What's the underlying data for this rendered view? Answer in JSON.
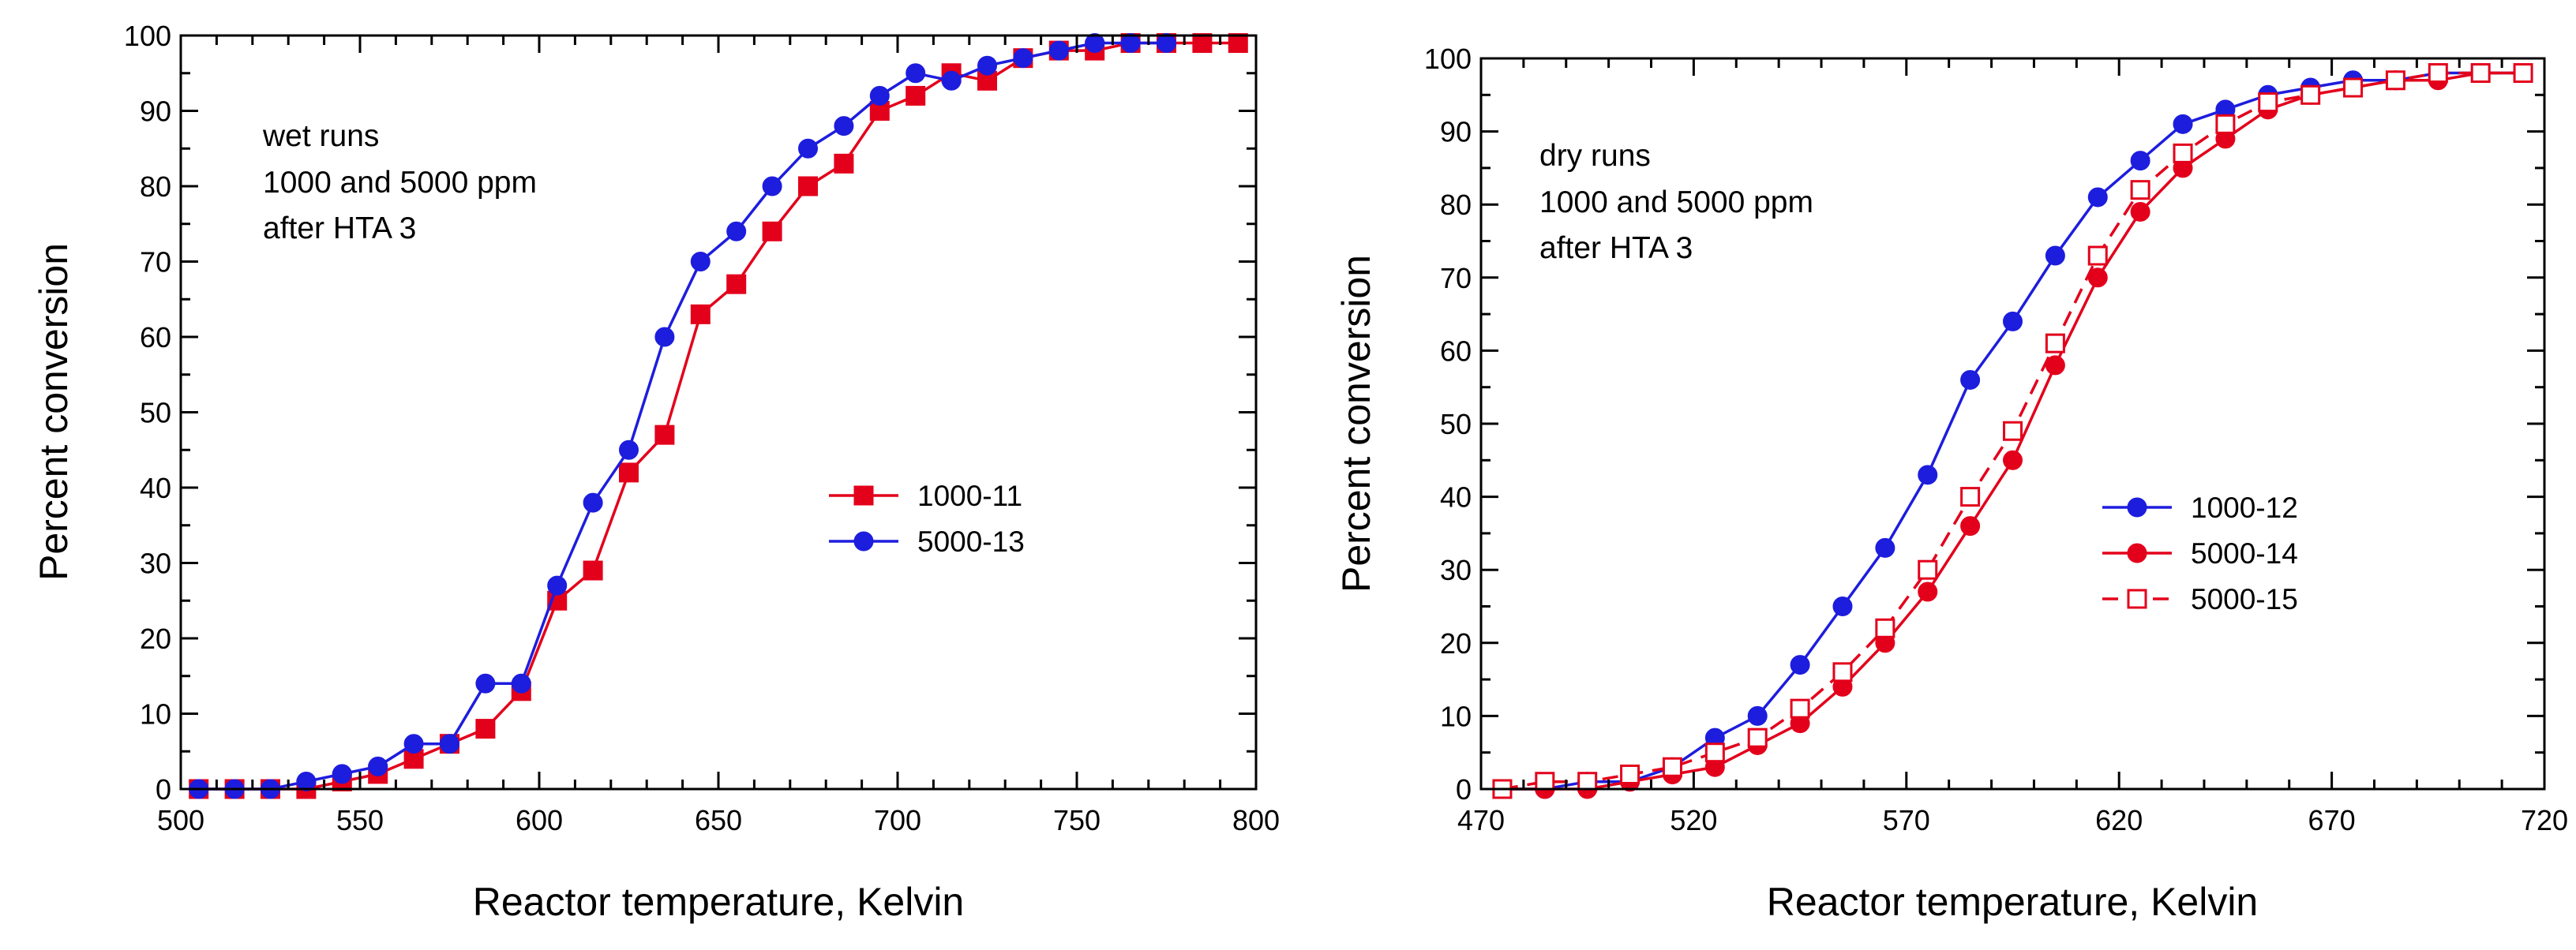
{
  "chart_data": [
    {
      "id": "left",
      "type": "line",
      "title": "",
      "xlabel": "Reactor temperature, Kelvin",
      "ylabel": "Percent conversion",
      "xlim": [
        500,
        800
      ],
      "ylim": [
        0,
        100
      ],
      "xticks": [
        500,
        550,
        600,
        650,
        700,
        750,
        800
      ],
      "yticks": [
        0,
        10,
        20,
        30,
        40,
        50,
        60,
        70,
        80,
        90,
        100
      ],
      "grid": false,
      "legend_position": "middle-right",
      "annotations": [
        "wet runs",
        "1000 and 5000 ppm",
        "after HTA 3"
      ],
      "series": [
        {
          "name": "1000-11",
          "color": "#e3001b",
          "marker": "square",
          "marker_fill": "filled",
          "line_style": "solid",
          "x": [
            505,
            515,
            525,
            535,
            545,
            555,
            565,
            575,
            585,
            595,
            605,
            615,
            625,
            635,
            645,
            655,
            665,
            675,
            685,
            695,
            705,
            715,
            725,
            735,
            745,
            755,
            765,
            775,
            785,
            795
          ],
          "y": [
            0,
            0,
            0,
            0,
            1,
            2,
            4,
            6,
            8,
            13,
            25,
            29,
            42,
            47,
            63,
            67,
            74,
            80,
            83,
            90,
            92,
            95,
            94,
            97,
            98,
            98,
            99,
            99,
            99,
            99
          ]
        },
        {
          "name": "5000-13",
          "color": "#1d1dde",
          "marker": "circle",
          "marker_fill": "filled",
          "line_style": "solid",
          "x": [
            505,
            515,
            525,
            535,
            545,
            555,
            565,
            575,
            585,
            595,
            605,
            615,
            625,
            635,
            645,
            655,
            665,
            675,
            685,
            695,
            705,
            715,
            725,
            735,
            745,
            755,
            765,
            775
          ],
          "y": [
            0,
            0,
            0,
            1,
            2,
            3,
            6,
            6,
            14,
            14,
            27,
            38,
            45,
            60,
            70,
            74,
            80,
            85,
            88,
            92,
            95,
            94,
            96,
            97,
            98,
            99,
            99,
            99
          ]
        }
      ]
    },
    {
      "id": "right",
      "type": "line",
      "title": "",
      "xlabel": "Reactor temperature, Kelvin",
      "ylabel": "Percent conversion",
      "xlim": [
        470,
        720
      ],
      "ylim": [
        0,
        100
      ],
      "xticks": [
        470,
        520,
        570,
        620,
        670,
        720
      ],
      "yticks": [
        0,
        10,
        20,
        30,
        40,
        50,
        60,
        70,
        80,
        90,
        100
      ],
      "grid": false,
      "legend_position": "middle-right",
      "annotations": [
        "dry runs",
        "1000 and 5000 ppm",
        "after HTA 3"
      ],
      "series": [
        {
          "name": "1000-12",
          "color": "#1d1dde",
          "marker": "circle",
          "marker_fill": "filled",
          "line_style": "solid",
          "x": [
            475,
            485,
            495,
            505,
            515,
            525,
            535,
            545,
            555,
            565,
            575,
            585,
            595,
            605,
            615,
            625,
            635,
            645,
            655,
            665,
            675,
            685,
            695,
            705,
            715
          ],
          "y": [
            0,
            0,
            1,
            1,
            3,
            7,
            10,
            17,
            25,
            33,
            43,
            56,
            64,
            73,
            81,
            86,
            91,
            93,
            95,
            96,
            97,
            97,
            98,
            98,
            98
          ]
        },
        {
          "name": "5000-14",
          "color": "#e3001b",
          "marker": "circle",
          "marker_fill": "filled",
          "line_style": "solid",
          "x": [
            475,
            485,
            495,
            505,
            515,
            525,
            535,
            545,
            555,
            565,
            575,
            585,
            595,
            605,
            615,
            625,
            635,
            645,
            655,
            665,
            675,
            685,
            695,
            705,
            715
          ],
          "y": [
            0,
            0,
            0,
            1,
            2,
            3,
            6,
            9,
            14,
            20,
            27,
            36,
            45,
            58,
            70,
            79,
            85,
            89,
            93,
            95,
            96,
            97,
            97,
            98,
            98
          ]
        },
        {
          "name": "5000-15",
          "color": "#e3001b",
          "marker": "square",
          "marker_fill": "open",
          "line_style": "dashed",
          "x": [
            475,
            485,
            495,
            505,
            515,
            525,
            535,
            545,
            555,
            565,
            575,
            585,
            595,
            605,
            615,
            625,
            635,
            645,
            655,
            665,
            675,
            685,
            695,
            705,
            715
          ],
          "y": [
            0,
            1,
            1,
            2,
            3,
            5,
            7,
            11,
            16,
            22,
            30,
            40,
            49,
            61,
            73,
            82,
            87,
            91,
            94,
            95,
            96,
            97,
            98,
            98,
            98
          ]
        }
      ]
    }
  ]
}
